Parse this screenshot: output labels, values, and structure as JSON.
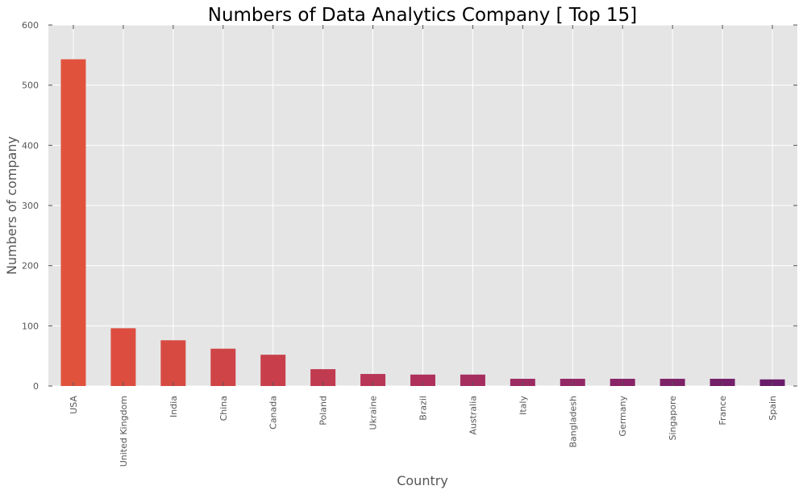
{
  "chart_data": {
    "type": "bar",
    "title": "Numbers of Data Analytics Company [ Top 15]",
    "xlabel": "Country",
    "ylabel": "Numbers of company",
    "categories": [
      "USA",
      "United Kingdom",
      "India",
      "China",
      "Canada",
      "Poland",
      "Ukraine",
      "Brazil",
      "Australia",
      "Italy",
      "Bangladesh",
      "Germany",
      "Singapore",
      "France",
      "Spain"
    ],
    "values": [
      543,
      96,
      76,
      62,
      52,
      28,
      20,
      19,
      19,
      12,
      12,
      12,
      12,
      12,
      11
    ],
    "ylim": [
      0,
      600
    ],
    "yticks": [
      0,
      100,
      200,
      300,
      400,
      500,
      600
    ],
    "grid": true,
    "colors": [
      "#e1523d",
      "#dc4d3f",
      "#d64a42",
      "#cf4446",
      "#c83f4b",
      "#c03a50",
      "#b83656",
      "#af315b",
      "#a52e5f",
      "#9c2b62",
      "#922865",
      "#882467",
      "#7e2268",
      "#741f69",
      "#6a1c6a"
    ],
    "background": "#e5e5e5"
  }
}
